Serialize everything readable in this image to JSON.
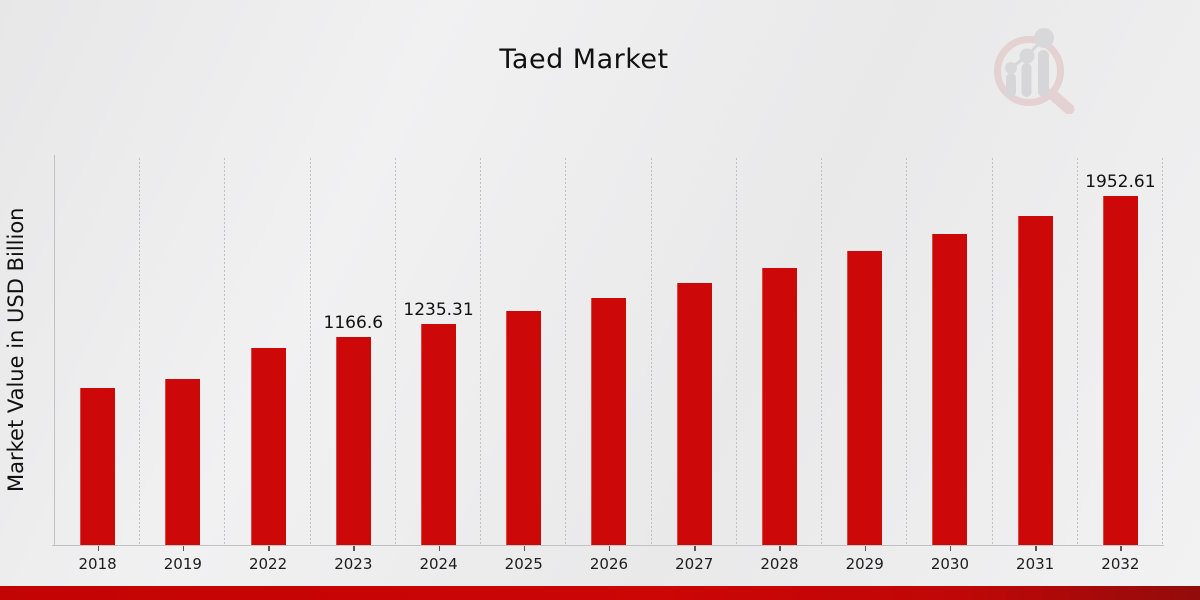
{
  "title": "Taed Market",
  "watermark": {
    "name": "market-research-future-logo"
  },
  "chart_data": {
    "type": "bar",
    "title": "Taed Market",
    "xlabel": "",
    "ylabel": "Market Value in USD Billion",
    "categories": [
      "2018",
      "2019",
      "2022",
      "2023",
      "2024",
      "2025",
      "2026",
      "2027",
      "2028",
      "2029",
      "2030",
      "2031",
      "2032"
    ],
    "values": [
      880,
      930,
      1102,
      1166.6,
      1235.31,
      1308,
      1385,
      1467,
      1553,
      1645,
      1742,
      1844,
      1952.61
    ],
    "bar_labels": [
      "",
      "",
      "",
      "1166.6",
      "1235.31",
      "",
      "",
      "",
      "",
      "",
      "",
      "",
      "1952.61"
    ],
    "bar_color": "#cc0808",
    "ylim": [
      0,
      2184
    ],
    "grid": "vertical-dotted",
    "legend": "none",
    "units": "USD Billion"
  },
  "style": {
    "accent_red": "#cc0808",
    "strip_red_left": "#c30404",
    "strip_red_right": "#930b0b",
    "axis_gray": "#c2c2c2",
    "background_gray": "#ececec"
  }
}
